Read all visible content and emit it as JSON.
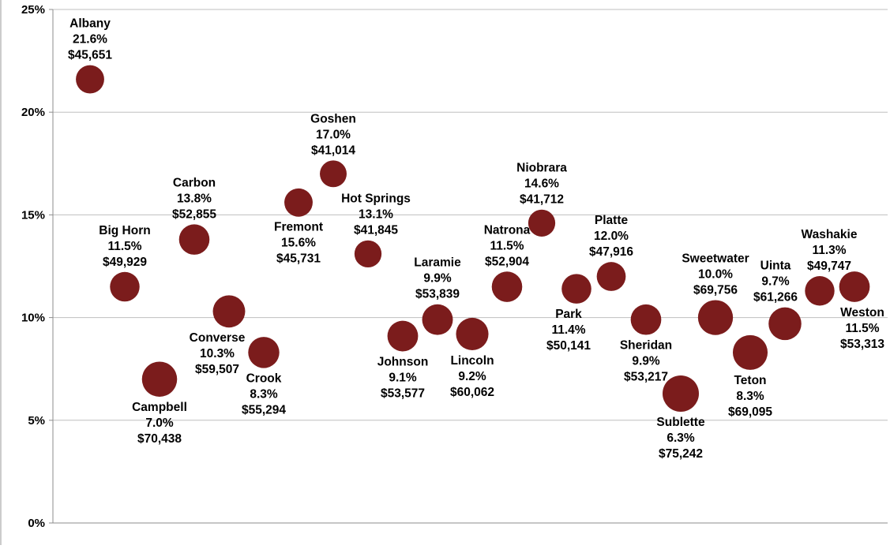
{
  "chart_data": {
    "type": "scatter",
    "title": "",
    "xlabel": "",
    "ylabel": "",
    "ylim": [
      0,
      25
    ],
    "y_ticks": [
      "0%",
      "5%",
      "10%",
      "15%",
      "20%",
      "25%"
    ],
    "y_format": "percent",
    "grid": true,
    "marker_color": "#7b1c1c",
    "series": [
      {
        "points": [
          {
            "name": "Albany",
            "y": 21.6,
            "label_pct": "21.6%",
            "income": "$45,651",
            "size_value": 45651
          },
          {
            "name": "Big Horn",
            "y": 11.5,
            "label_pct": "11.5%",
            "income": "$49,929",
            "size_value": 49929
          },
          {
            "name": "Campbell",
            "y": 7.0,
            "label_pct": "7.0%",
            "income": "$70,438",
            "size_value": 70438
          },
          {
            "name": "Carbon",
            "y": 13.8,
            "label_pct": "13.8%",
            "income": "$52,855",
            "size_value": 52855
          },
          {
            "name": "Converse",
            "y": 10.3,
            "label_pct": "10.3%",
            "income": "$59,507",
            "size_value": 59507
          },
          {
            "name": "Crook",
            "y": 8.3,
            "label_pct": "8.3%",
            "income": "$55,294",
            "size_value": 55294
          },
          {
            "name": "Fremont",
            "y": 15.6,
            "label_pct": "15.6%",
            "income": "$45,731",
            "size_value": 45731
          },
          {
            "name": "Goshen",
            "y": 17.0,
            "label_pct": "17.0%",
            "income": "$41,014",
            "size_value": 41014
          },
          {
            "name": "Hot Springs",
            "y": 13.1,
            "label_pct": "13.1%",
            "income": "$41,845",
            "size_value": 41845
          },
          {
            "name": "Johnson",
            "y": 9.1,
            "label_pct": "9.1%",
            "income": "$53,577",
            "size_value": 53577
          },
          {
            "name": "Laramie",
            "y": 9.9,
            "label_pct": "9.9%",
            "income": "$53,839",
            "size_value": 53839
          },
          {
            "name": "Lincoln",
            "y": 9.2,
            "label_pct": "9.2%",
            "income": "$60,062",
            "size_value": 60062
          },
          {
            "name": "Natrona",
            "y": 11.5,
            "label_pct": "11.5%",
            "income": "$52,904",
            "size_value": 52904
          },
          {
            "name": "Niobrara",
            "y": 14.6,
            "label_pct": "14.6%",
            "income": "$41,712",
            "size_value": 41712
          },
          {
            "name": "Park",
            "y": 11.4,
            "label_pct": "11.4%",
            "income": "$50,141",
            "size_value": 50141
          },
          {
            "name": "Platte",
            "y": 12.0,
            "label_pct": "12.0%",
            "income": "$47,916",
            "size_value": 47916
          },
          {
            "name": "Sheridan",
            "y": 9.9,
            "label_pct": "9.9%",
            "income": "$53,217",
            "size_value": 53217
          },
          {
            "name": "Sublette",
            "y": 6.3,
            "label_pct": "6.3%",
            "income": "$75,242",
            "size_value": 75242
          },
          {
            "name": "Sweetwater",
            "y": 10.0,
            "label_pct": "10.0%",
            "income": "$69,756",
            "size_value": 69756
          },
          {
            "name": "Teton",
            "y": 8.3,
            "label_pct": "8.3%",
            "income": "$69,095",
            "size_value": 69095
          },
          {
            "name": "Uinta",
            "y": 9.7,
            "label_pct": "9.7%",
            "income": "$61,266",
            "size_value": 61266
          },
          {
            "name": "Washakie",
            "y": 11.3,
            "label_pct": "11.3%",
            "income": "$49,747",
            "size_value": 49747
          },
          {
            "name": "Weston",
            "y": 11.5,
            "label_pct": "11.5%",
            "income": "$53,313",
            "size_value": 53313
          }
        ]
      }
    ]
  }
}
